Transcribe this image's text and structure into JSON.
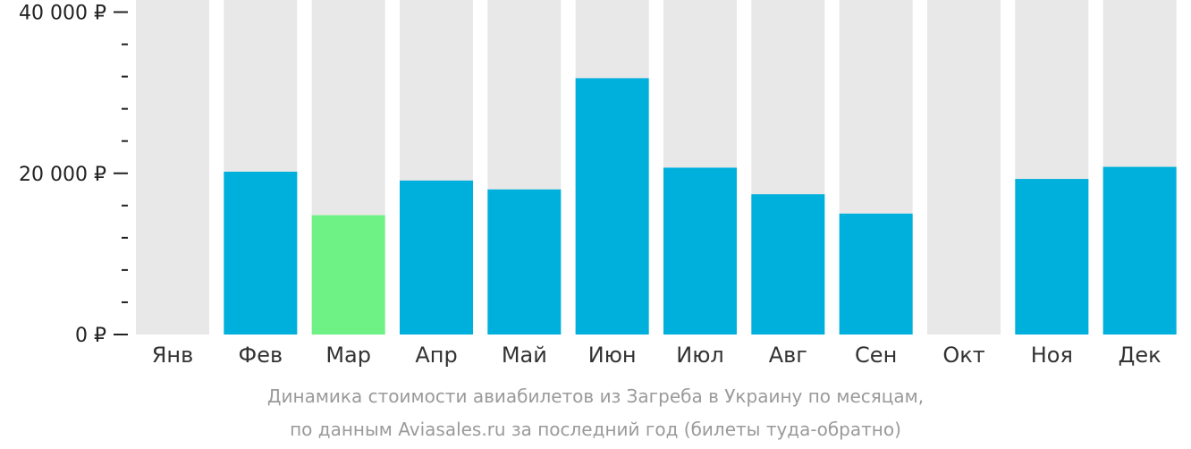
{
  "chart_data": {
    "type": "bar",
    "categories": [
      "Янв",
      "Фев",
      "Мар",
      "Апр",
      "Май",
      "Июн",
      "Июл",
      "Авг",
      "Сен",
      "Окт",
      "Ноя",
      "Дек"
    ],
    "values": [
      null,
      20200,
      14800,
      19100,
      18000,
      31800,
      20700,
      17400,
      15000,
      null,
      19300,
      20800
    ],
    "ylim": [
      0,
      41500
    ],
    "yticks": [
      {
        "value": 0,
        "label": "0 ₽"
      },
      {
        "value": 20000,
        "label": "20 000 ₽"
      },
      {
        "value": 40000,
        "label": "40 000 ₽"
      }
    ],
    "minor_tick_step": 4000,
    "highlight_index": 2,
    "colors": {
      "bar": "#00b0dc",
      "highlight": "#6ef286",
      "background_bar": "#e8e8e8",
      "axis": "#222222"
    },
    "caption": [
      "Динамика стоимости авиабилетов из Загреба в Украину по месяцам,",
      "по данным Aviasales.ru за последний год (билеты туда-обратно)"
    ]
  }
}
